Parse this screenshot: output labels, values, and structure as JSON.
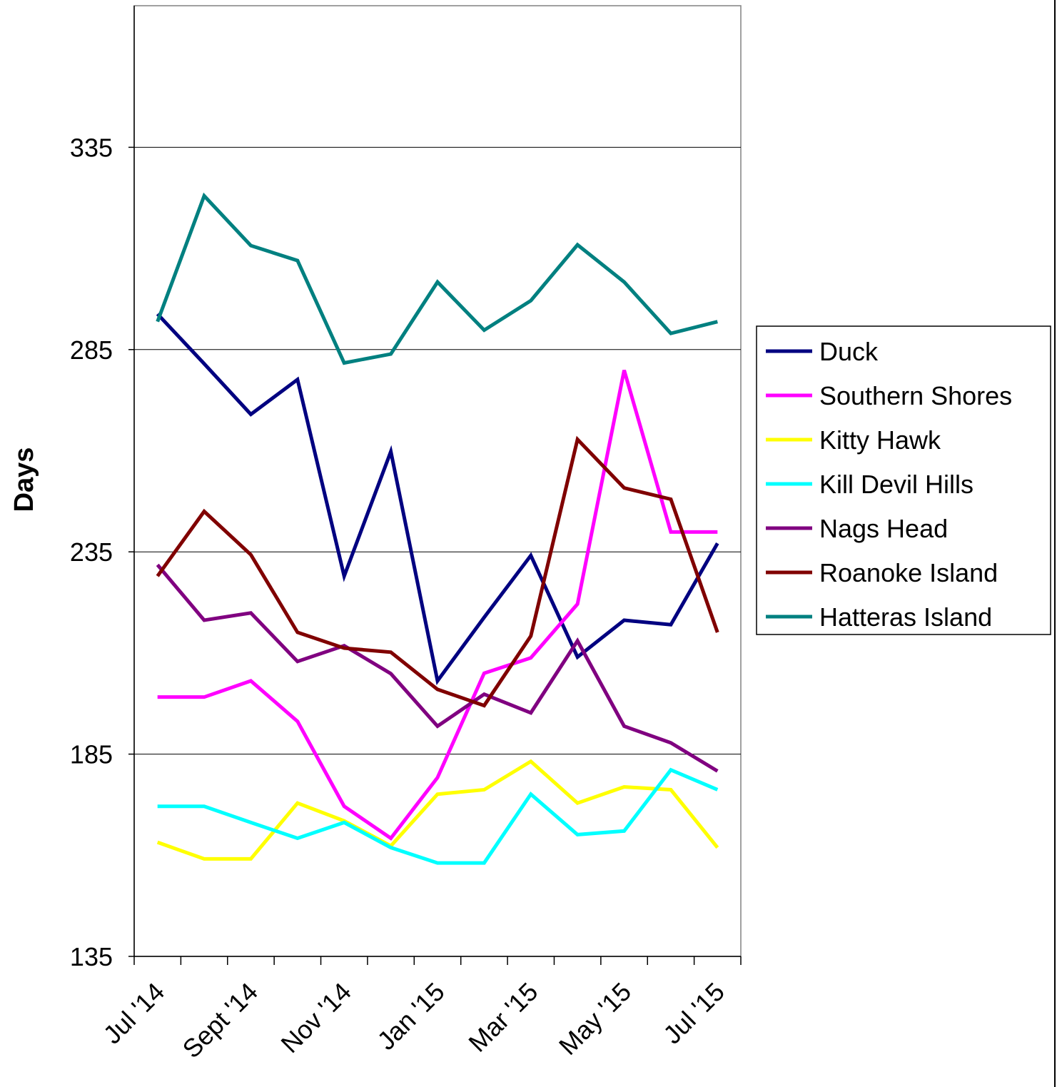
{
  "chart_data": {
    "type": "line",
    "y_label": "Days",
    "categories": [
      "Jul '14",
      null,
      "Sept '14",
      null,
      "Nov '14",
      null,
      "Jan '15",
      null,
      "Mar '15",
      null,
      "May '15",
      null,
      "Jul '15"
    ],
    "ylim": [
      135,
      370
    ],
    "yticks": [
      135,
      185,
      235,
      285,
      335
    ],
    "grid": true,
    "legend": "right",
    "series": [
      {
        "name": "Duck",
        "color": "#000080",
        "values": [
          293.8,
          281.5,
          269,
          277.6,
          229,
          259.8,
          203.1,
          218.8,
          234.1,
          209,
          218.1,
          217,
          237.1
        ]
      },
      {
        "name": "Southern Shores",
        "color": "#ff00ff",
        "values": [
          199.1,
          199.1,
          203.1,
          193.1,
          172.1,
          164.2,
          179.2,
          205,
          208.8,
          222.1,
          279.9,
          239.9,
          239.9
        ]
      },
      {
        "name": "Kitty Hawk",
        "color": "#ffff00",
        "values": [
          163.2,
          159.1,
          159.1,
          172.9,
          168.5,
          162.3,
          175.1,
          176.2,
          183.2,
          172.9,
          176.9,
          176.2,
          161.9
        ]
      },
      {
        "name": "Kill Devil Hills",
        "color": "#00ffff",
        "values": [
          172.1,
          172.1,
          168.1,
          164.2,
          168.1,
          161.9,
          158.1,
          158.1,
          175.1,
          165.1,
          166,
          181.1,
          176.2
        ]
      },
      {
        "name": "Nags Head",
        "color": "#800080",
        "values": [
          231.8,
          218.1,
          219.9,
          207.9,
          211.8,
          204.9,
          191.9,
          199.8,
          195.2,
          213,
          191.9,
          187.8,
          180.8
        ]
      },
      {
        "name": "Roanoke Island",
        "color": "#800000",
        "values": [
          229,
          245,
          234.3,
          215.1,
          211.2,
          210.2,
          201,
          197,
          214.2,
          262.8,
          250.8,
          248,
          215.1
        ]
      },
      {
        "name": "Hatteras Island",
        "color": "#008080",
        "values": [
          291.9,
          323,
          310.7,
          307,
          281.7,
          283.9,
          301.7,
          289.8,
          297.1,
          310.9,
          301.7,
          289,
          291.9
        ]
      }
    ]
  }
}
